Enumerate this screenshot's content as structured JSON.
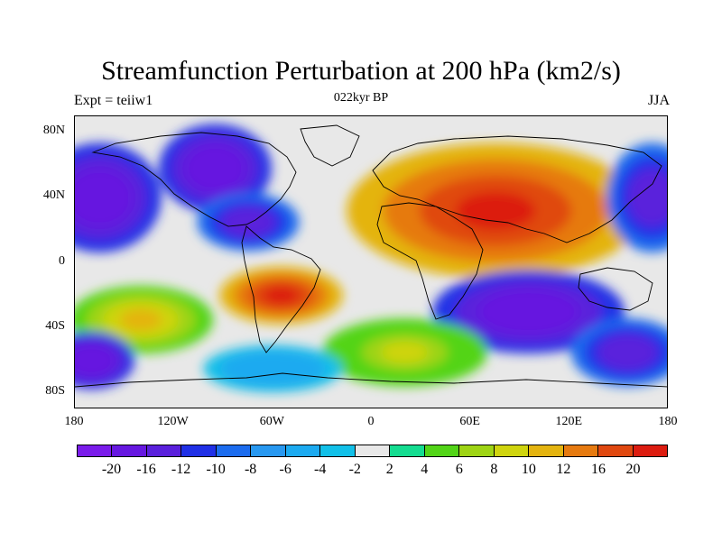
{
  "title": "Streamfunction Perturbation at 200 hPa (km2/s)",
  "subtitle": "022kyr BP",
  "left_label": "Expt = teiiw1",
  "right_label": "JJA",
  "map": {
    "projection": "cylindrical-equidistant",
    "lon_range": [
      -180,
      180
    ],
    "lat_range": [
      -90,
      90
    ],
    "missing_color": "#e8e8e8",
    "coastline_color": "#000000",
    "lat_ticks": [
      {
        "lat": 80,
        "label": "80N"
      },
      {
        "lat": 40,
        "label": "40N"
      },
      {
        "lat": 0,
        "label": "0"
      },
      {
        "lat": -40,
        "label": "40S"
      },
      {
        "lat": -80,
        "label": "80S"
      }
    ],
    "lon_ticks": [
      {
        "lon": -180,
        "label": "180"
      },
      {
        "lon": -120,
        "label": "120W"
      },
      {
        "lon": -60,
        "label": "60W"
      },
      {
        "lon": 0,
        "label": "0"
      },
      {
        "lon": 60,
        "label": "60E"
      },
      {
        "lon": 120,
        "label": "120E"
      },
      {
        "lon": 180,
        "label": "180"
      }
    ],
    "features": [
      {
        "name": "eurasia-high",
        "lon": 75,
        "lat": 32,
        "rx": 55,
        "ry": 25,
        "value": 20
      },
      {
        "name": "north-atlantic-low",
        "lon": -95,
        "lat": 58,
        "rx": 20,
        "ry": 16,
        "value": -20
      },
      {
        "name": "north-america-low",
        "lon": -75,
        "lat": 25,
        "rx": 18,
        "ry": 10,
        "value": -16
      },
      {
        "name": "north-pacific-low",
        "lon": -165,
        "lat": 40,
        "rx": 22,
        "ry": 20,
        "value": -20
      },
      {
        "name": "dateline-low-east",
        "lon": 170,
        "lat": 40,
        "rx": 16,
        "ry": 20,
        "value": -16
      },
      {
        "name": "south-america-high",
        "lon": -55,
        "lat": -20,
        "rx": 22,
        "ry": 10,
        "value": 20
      },
      {
        "name": "south-pacific-high",
        "lon": -140,
        "lat": -35,
        "rx": 26,
        "ry": 12,
        "value": 10
      },
      {
        "name": "indian-ocean-low",
        "lon": 95,
        "lat": -30,
        "rx": 35,
        "ry": 15,
        "value": -20
      },
      {
        "name": "south-atlantic-high",
        "lon": 20,
        "lat": -55,
        "rx": 30,
        "ry": 12,
        "value": 8
      },
      {
        "name": "southern-ocean-low",
        "lon": -60,
        "lat": -65,
        "rx": 25,
        "ry": 8,
        "value": -6
      },
      {
        "name": "far-south-pacific-low",
        "lon": -170,
        "lat": -60,
        "rx": 15,
        "ry": 10,
        "value": -20
      },
      {
        "name": "west-pacific-low",
        "lon": 155,
        "lat": -55,
        "rx": 20,
        "ry": 12,
        "value": -16
      }
    ]
  },
  "colorbar": {
    "colors": [
      "#7a1cea",
      "#6618e0",
      "#5a20dc",
      "#2030e6",
      "#1c6cee",
      "#2898f0",
      "#1caaf0",
      "#12c0e8",
      "#e8e8e8",
      "#14dc90",
      "#52d418",
      "#9ed414",
      "#cfd40e",
      "#e4b410",
      "#e67a10",
      "#e04810",
      "#dc1c10"
    ],
    "labels": [
      "-20",
      "-16",
      "-12",
      "-10",
      "-8",
      "-6",
      "-4",
      "-2",
      "2",
      "4",
      "6",
      "8",
      "10",
      "12",
      "16",
      "20"
    ]
  }
}
